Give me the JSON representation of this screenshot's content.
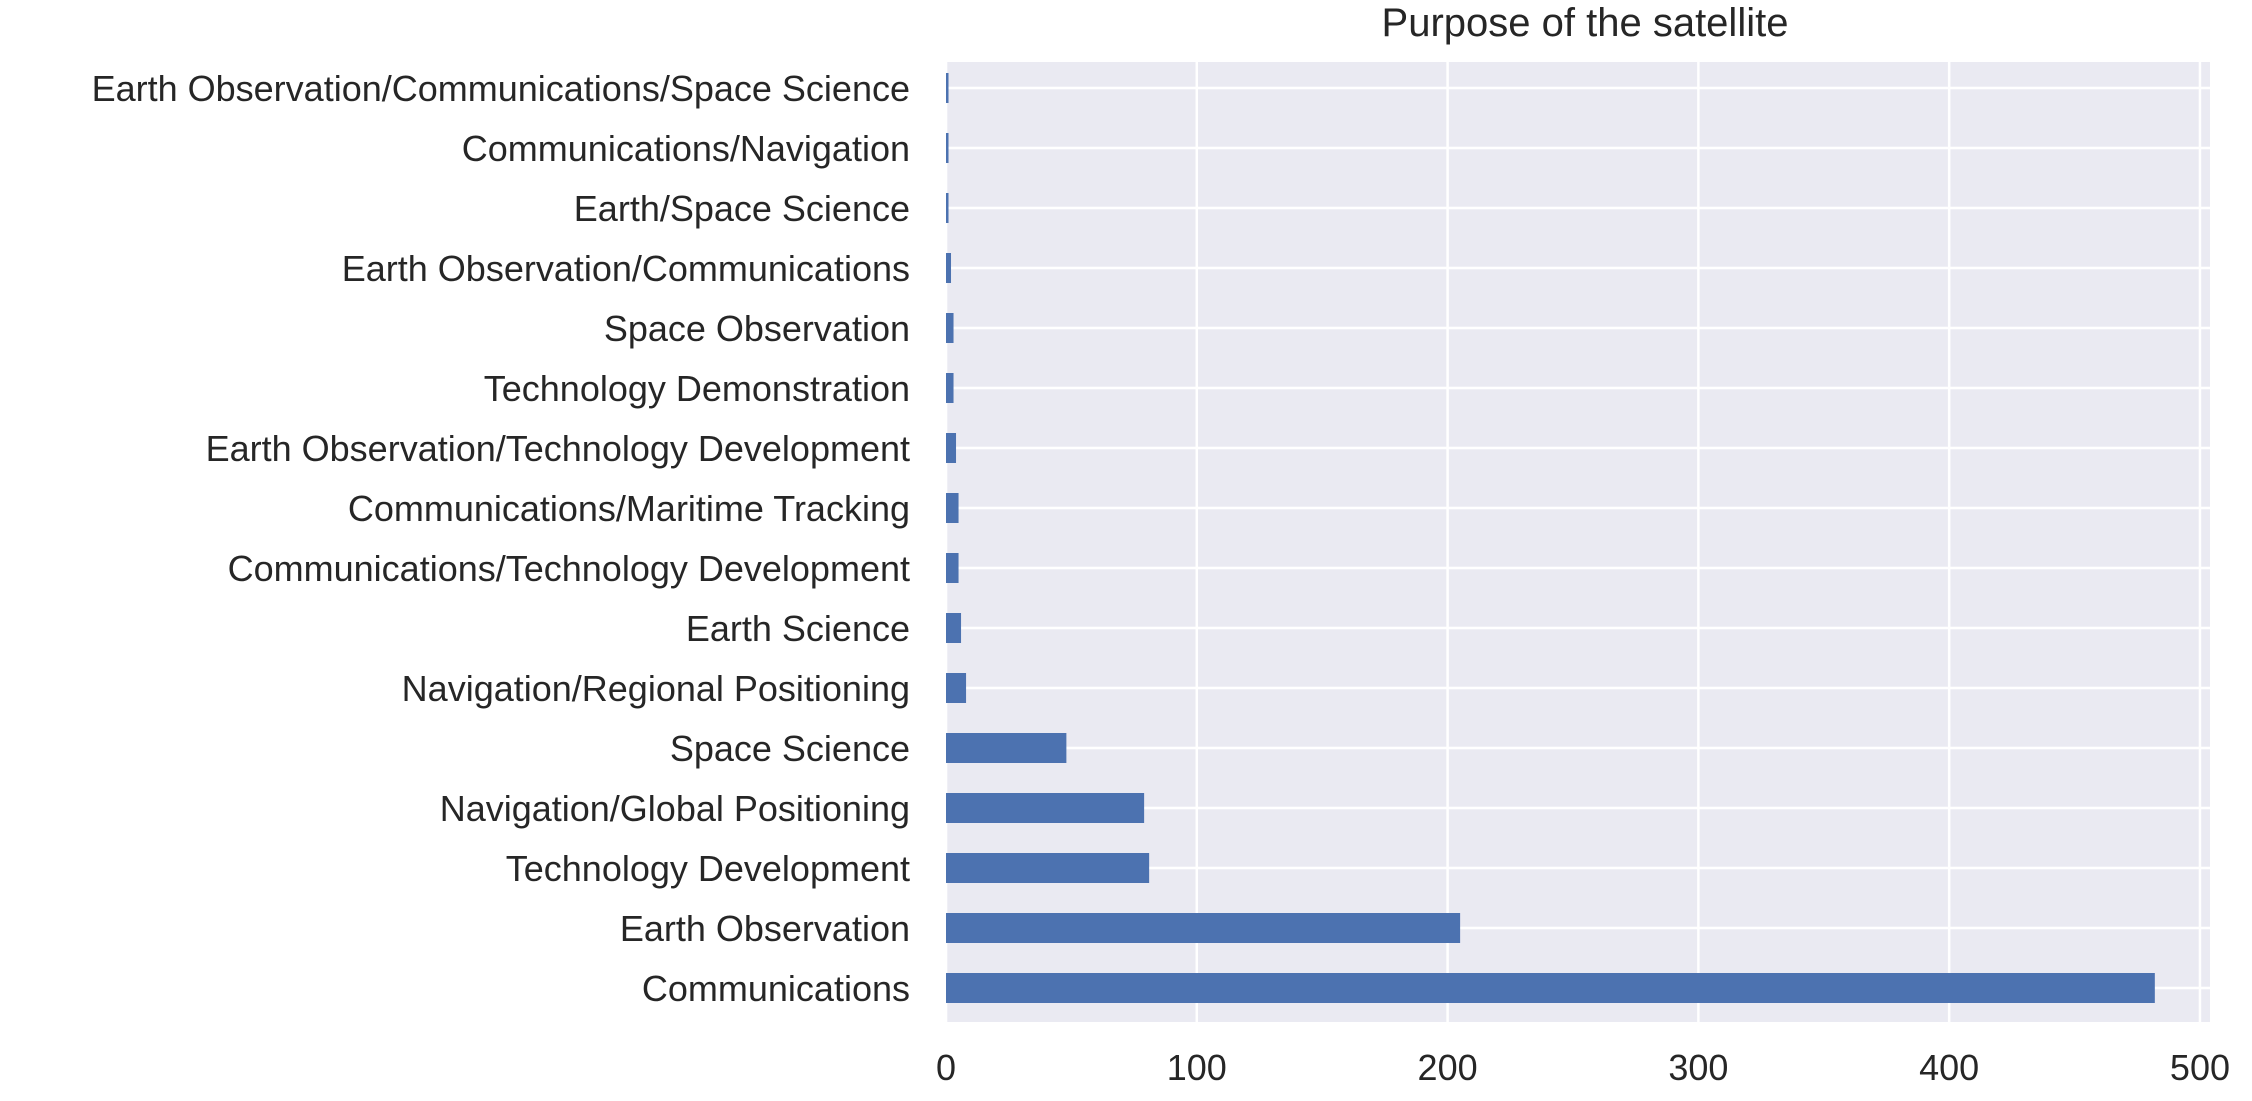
{
  "chart_data": {
    "type": "bar",
    "orientation": "horizontal",
    "title": "Purpose of the satellite",
    "xlabel": "",
    "ylabel": "",
    "categories": [
      "Communications",
      "Earth Observation",
      "Technology Development",
      "Navigation/Global Positioning",
      "Space Science",
      "Navigation/Regional Positioning",
      "Earth Science",
      "Communications/Technology Development",
      "Communications/Maritime Tracking",
      "Earth Observation/Technology Development",
      "Technology Demonstration",
      "Space Observation",
      "Earth Observation/Communications",
      "Earth/Space Science",
      "Communications/Navigation",
      "Earth Observation/Communications/Space Science"
    ],
    "values": [
      482,
      205,
      81,
      79,
      48,
      8,
      6,
      5,
      5,
      4,
      3,
      3,
      2,
      1,
      1,
      1
    ],
    "xticks": [
      0,
      100,
      200,
      300,
      400,
      500
    ],
    "xlim": [
      0,
      504
    ],
    "grid": true,
    "legend": "none",
    "colors": {
      "bar": "#4c72b0",
      "plot_background": "#eaeaf2",
      "grid": "#ffffff",
      "text": "#262626"
    }
  }
}
